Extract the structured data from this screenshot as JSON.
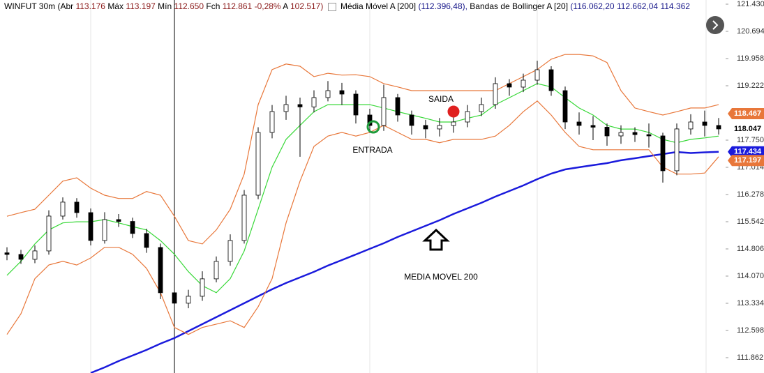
{
  "header": {
    "parts": [
      "WINFUT 30m (Abr",
      "113.176",
      "Máx",
      "113.197",
      "Mín",
      "112.650",
      "Fch",
      "112.861",
      "-0,28%",
      "A",
      "102.517)"
    ],
    "indicators": [
      "Média Móvel A [200]",
      "(112.396,48),",
      "Bandas de Bollinger A [20]",
      "(116.062,20",
      "112.662,04",
      "114.362"
    ]
  },
  "chart_data": {
    "type": "candlestick",
    "ylim": [
      111.447,
      121.543
    ],
    "yticks": [
      {
        "value": 121.43,
        "label": "121.430"
      },
      {
        "value": 120.694,
        "label": "120.694"
      },
      {
        "value": 119.958,
        "label": "119.958"
      },
      {
        "value": 119.222,
        "label": "119.222"
      },
      {
        "value": 117.75,
        "label": "117.750"
      },
      {
        "value": 117.014,
        "label": "117.014"
      },
      {
        "value": 116.278,
        "label": "116.278"
      },
      {
        "value": 115.542,
        "label": "115.542"
      },
      {
        "value": 114.806,
        "label": "114.806"
      },
      {
        "value": 114.07,
        "label": "114.070"
      },
      {
        "value": 113.334,
        "label": "113.334"
      },
      {
        "value": 112.598,
        "label": "112.598"
      },
      {
        "value": 111.862,
        "label": "111.862"
      }
    ],
    "open": [
      114.7,
      114.656,
      114.524,
      114.751,
      115.694,
      116.072,
      115.788,
      115.034,
      115.6,
      115.55,
      115.222,
      114.845,
      113.619,
      113.336,
      113.524,
      113.996,
      114.468,
      115.034,
      116.26,
      117.958,
      118.524,
      118.713,
      118.65,
      118.902,
      119.09,
      118.996,
      118.43,
      118.147,
      118.902,
      118.43,
      118.147,
      118.053,
      118.147,
      118.241,
      118.524,
      118.713,
      119.279,
      119.185,
      119.373,
      119.656,
      119.09,
      118.241,
      118.147,
      118.1,
      117.864,
      117.958,
      117.9,
      117.864,
      116.921,
      118.053,
      118.241,
      118.147
    ],
    "high": [
      114.85,
      114.78,
      114.9,
      115.85,
      116.2,
      116.18,
      115.9,
      115.8,
      115.75,
      115.65,
      115.35,
      114.95,
      113.8,
      113.7,
      114.2,
      114.6,
      115.2,
      116.4,
      118.1,
      118.7,
      118.95,
      118.9,
      119.1,
      119.35,
      119.3,
      119.1,
      118.6,
      119.25,
      119.0,
      118.55,
      118.3,
      118.35,
      118.45,
      118.7,
      118.9,
      119.45,
      119.4,
      119.55,
      119.9,
      119.75,
      119.2,
      118.5,
      118.4,
      118.2,
      118.15,
      118.1,
      118.2,
      117.95,
      118.2,
      118.45,
      118.55,
      118.35
    ],
    "low": [
      114.5,
      114.4,
      114.42,
      114.65,
      115.6,
      115.65,
      114.9,
      114.95,
      115.4,
      115.1,
      114.7,
      113.45,
      113.15,
      113.2,
      113.4,
      113.9,
      114.35,
      114.95,
      116.15,
      117.8,
      118.3,
      117.3,
      118.5,
      118.8,
      118.7,
      118.2,
      117.95,
      118.0,
      118.25,
      117.9,
      117.8,
      117.85,
      117.95,
      118.1,
      118.4,
      118.6,
      118.95,
      119.05,
      119.25,
      118.95,
      118.05,
      117.9,
      117.75,
      117.6,
      117.65,
      117.7,
      117.55,
      116.6,
      116.8,
      117.9,
      117.85,
      117.9
    ],
    "close": [
      114.656,
      114.524,
      114.751,
      115.694,
      116.072,
      115.788,
      115.034,
      115.6,
      115.55,
      115.222,
      114.845,
      113.619,
      113.336,
      113.524,
      113.996,
      114.468,
      115.034,
      116.26,
      117.958,
      118.524,
      118.713,
      118.65,
      118.902,
      119.09,
      118.996,
      118.43,
      118.147,
      118.902,
      118.43,
      118.147,
      118.053,
      118.147,
      118.241,
      118.524,
      118.713,
      119.279,
      119.185,
      119.373,
      119.656,
      119.09,
      118.241,
      118.147,
      118.1,
      117.864,
      117.958,
      117.9,
      117.864,
      116.921,
      118.053,
      118.241,
      118.147,
      118.053
    ],
    "series": [
      {
        "color": "#1a1adc",
        "values": [
          null,
          null,
          null,
          null,
          null,
          null,
          111.449,
          111.6,
          111.77,
          111.921,
          112.072,
          112.241,
          112.392,
          112.581,
          112.77,
          112.958,
          113.147,
          113.336,
          113.524,
          113.713,
          113.883,
          114.034,
          114.185,
          114.355,
          114.505,
          114.656,
          114.807,
          114.958,
          115.128,
          115.279,
          115.43,
          115.581,
          115.751,
          115.902,
          116.053,
          116.222,
          116.373,
          116.524,
          116.694,
          116.845,
          116.958,
          117.015,
          117.072,
          117.128,
          117.204,
          117.26,
          117.317,
          117.373,
          117.43,
          117.4,
          117.42,
          117.434
        ]
      },
      {
        "color": "#e8773a",
        "values": [
          115.69,
          115.79,
          115.88,
          116.26,
          116.64,
          116.73,
          116.45,
          116.26,
          116.17,
          116.17,
          116.36,
          116.26,
          115.69,
          115.03,
          114.94,
          115.32,
          115.88,
          116.83,
          118.71,
          119.66,
          119.81,
          119.75,
          119.47,
          119.56,
          119.51,
          119.52,
          119.47,
          119.28,
          119.19,
          119.09,
          119.09,
          119.09,
          119.09,
          119.09,
          119.09,
          119.09,
          119.28,
          119.47,
          119.66,
          119.94,
          120.07,
          120.07,
          120.03,
          119.85,
          119.09,
          118.62,
          118.52,
          118.43,
          118.52,
          118.62,
          118.62,
          118.71
        ]
      },
      {
        "color": "#38d838",
        "values": [
          114.09,
          114.47,
          114.94,
          115.32,
          115.51,
          115.54,
          115.54,
          115.6,
          115.51,
          115.41,
          115.32,
          115.03,
          114.66,
          114.19,
          113.81,
          113.62,
          114.0,
          114.75,
          115.88,
          117.02,
          117.77,
          118.15,
          118.52,
          118.71,
          118.71,
          118.71,
          118.71,
          118.62,
          118.52,
          118.43,
          118.34,
          118.24,
          118.24,
          118.34,
          118.43,
          118.71,
          118.9,
          119.09,
          119.28,
          119.19,
          118.9,
          118.62,
          118.43,
          118.15,
          118.05,
          118.05,
          117.96,
          117.77,
          117.68,
          117.77,
          117.81,
          117.86
        ]
      },
      {
        "color": "#e8773a",
        "values": [
          112.49,
          113.05,
          114.0,
          114.37,
          114.47,
          114.37,
          114.56,
          114.85,
          114.85,
          114.66,
          114.28,
          113.62,
          112.68,
          112.49,
          112.68,
          112.77,
          112.86,
          112.68,
          113.24,
          114.0,
          115.51,
          116.64,
          117.58,
          117.86,
          117.96,
          117.86,
          117.96,
          118.15,
          117.96,
          117.77,
          117.77,
          117.68,
          117.77,
          117.77,
          117.77,
          117.86,
          118.15,
          118.52,
          118.81,
          118.43,
          117.96,
          117.58,
          117.49,
          117.49,
          117.49,
          117.49,
          117.49,
          117.02,
          116.83,
          116.83,
          116.86,
          117.3
        ]
      }
    ],
    "price_tags": [
      {
        "value": 118.467,
        "color": "#e8773a"
      },
      {
        "value": 118.047,
        "color": "#ffffff"
      },
      {
        "value": 117.434,
        "color": "#1a1adc"
      },
      {
        "value": 117.197,
        "color": "#e8773a"
      }
    ],
    "annotations": [
      "SAIDA",
      "ENTRADA",
      "MEDIA MOVEL 200"
    ]
  }
}
